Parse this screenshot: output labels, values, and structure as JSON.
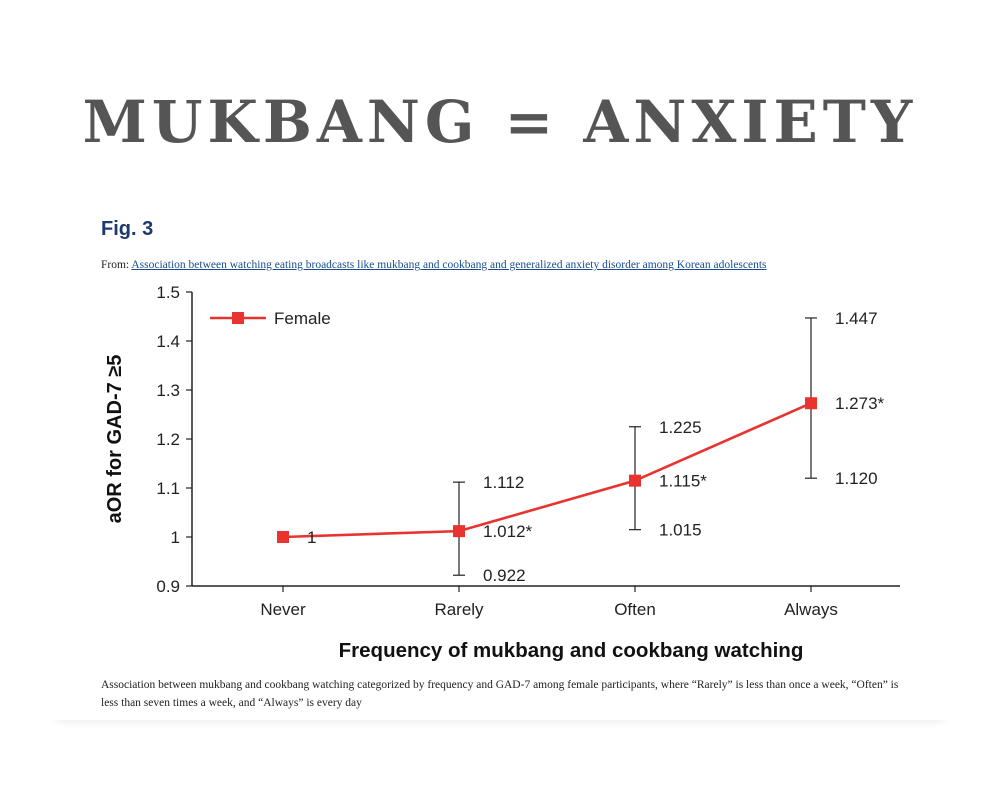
{
  "headline": "MUKBANG = ANXIETY",
  "figure": {
    "label": "Fig. 3",
    "from_prefix": "From:",
    "source_link": "Association between watching eating broadcasts like mukbang and cookbang and generalized anxiety disorder among Korean adolescents",
    "caption": "Association between mukbang and cookbang watching categorized by frequency and GAD-7 among female participants, where “Rarely” is less than once a week, “Often” is less than seven times a week, and “Always” is every day"
  },
  "colors": {
    "series": "#e8332f",
    "text": "#222222",
    "fig_label": "#1d3a6e",
    "link": "#1a4d8f"
  },
  "chart_data": {
    "type": "line",
    "title": "",
    "xlabel": "Frequency of mukbang and cookbang watching",
    "ylabel": "aOR for GAD-7 ≥5",
    "categories": [
      "Never",
      "Rarely",
      "Often",
      "Always"
    ],
    "ylim": [
      0.9,
      1.5
    ],
    "yticks": [
      "0.9",
      "1",
      "1.1",
      "1.2",
      "1.3",
      "1.4",
      "1.5"
    ],
    "grid": false,
    "legend": "top-left",
    "series": [
      {
        "name": "Female",
        "values": [
          1,
          1.012,
          1.115,
          1.273
        ],
        "lower": [
          null,
          0.922,
          1.015,
          1.12
        ],
        "upper": [
          null,
          1.112,
          1.225,
          1.447
        ],
        "value_labels": [
          "1",
          "1.012*",
          "1.115*",
          "1.273*"
        ],
        "lower_labels": [
          "",
          "0.922",
          "1.015",
          "1.120"
        ],
        "upper_labels": [
          "",
          "1.112",
          "1.225",
          "1.447"
        ]
      }
    ]
  }
}
